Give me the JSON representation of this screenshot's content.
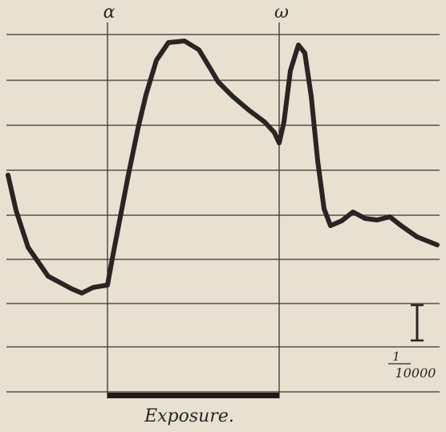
{
  "figure": {
    "labels": {
      "alpha": "α",
      "omega": "ω"
    },
    "scale": {
      "numerator": "1",
      "denominator": "10000"
    },
    "caption": "Exposure."
  }
}
